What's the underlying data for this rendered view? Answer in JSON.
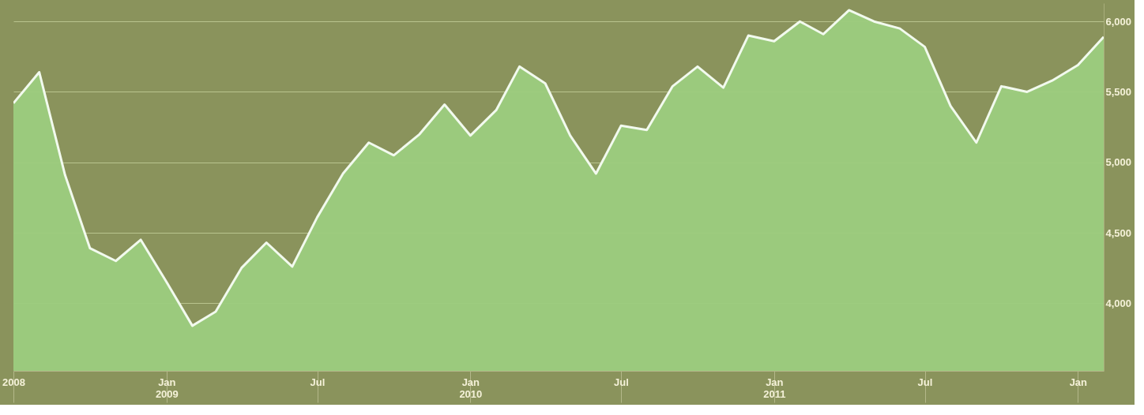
{
  "chart_data": {
    "type": "area",
    "x": [
      "2008-07",
      "2008-08",
      "2008-09",
      "2008-10",
      "2008-11",
      "2008-12",
      "2009-01",
      "2009-02",
      "2009-03",
      "2009-04",
      "2009-05",
      "2009-06",
      "2009-07",
      "2009-08",
      "2009-09",
      "2009-10",
      "2009-11",
      "2009-12",
      "2010-01",
      "2010-02",
      "2010-03",
      "2010-04",
      "2010-05",
      "2010-06",
      "2010-07",
      "2010-08",
      "2010-09",
      "2010-10",
      "2010-11",
      "2010-12",
      "2011-01",
      "2011-02",
      "2011-03",
      "2011-04",
      "2011-05",
      "2011-06",
      "2011-07",
      "2011-08",
      "2011-09",
      "2011-10",
      "2011-11",
      "2011-12",
      "2012-01",
      "2012-02"
    ],
    "series": [
      {
        "color": "#9ccc7e",
        "values": [
          5420,
          5640,
          4910,
          4390,
          4300,
          4450,
          4150,
          3840,
          3940,
          4250,
          4430,
          4260,
          4610,
          4920,
          5140,
          5050,
          5200,
          5410,
          5190,
          5370,
          5680,
          5560,
          5190,
          4920,
          5260,
          5230,
          5540,
          5680,
          5530,
          5900,
          5860,
          6000,
          5910,
          6080,
          6000,
          5950,
          5820,
          5400,
          5140,
          5540,
          5500,
          5580,
          5690,
          5890
        ]
      }
    ],
    "xlim": [
      "2008-07",
      "2012-02"
    ],
    "xticks": [
      {
        "value": "2008-07",
        "label": "2008"
      },
      {
        "value": "2009-01",
        "label": "Jan 2009"
      },
      {
        "value": "2009-07",
        "label": "Jul"
      },
      {
        "value": "2010-01",
        "label": "Jan 2010"
      },
      {
        "value": "2010-07",
        "label": "Jul"
      },
      {
        "value": "2011-01",
        "label": "Jan 2011"
      },
      {
        "value": "2011-07",
        "label": "Jul"
      },
      {
        "value": "2012-01",
        "label": "Jan"
      }
    ],
    "ylim": [
      3520,
      6130
    ],
    "yticks": [
      {
        "value": 4000,
        "label": "4,000"
      },
      {
        "value": 4500,
        "label": "4,500"
      },
      {
        "value": 5000,
        "label": "5,000"
      },
      {
        "value": 5500,
        "label": "5,500"
      },
      {
        "value": 6000,
        "label": "6,000"
      }
    ],
    "grid": "y"
  }
}
